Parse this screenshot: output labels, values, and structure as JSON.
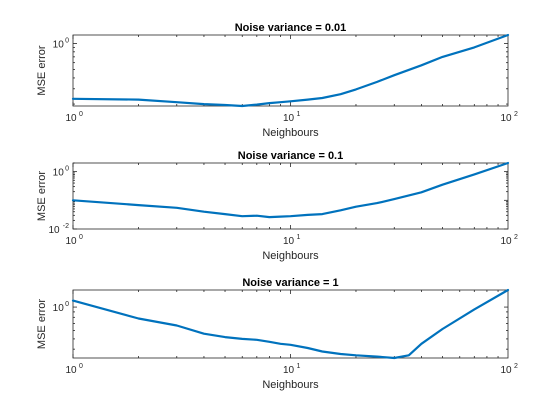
{
  "chart_data": [
    {
      "type": "line",
      "title": "Noise variance = 0.01",
      "xlabel": "Neighbours",
      "ylabel": "MSE error",
      "x_scale": "log",
      "y_scale": "log",
      "xlim": [
        1,
        100
      ],
      "ylim": [
        0.19,
        1.25
      ],
      "x_ticks": [
        {
          "base": "10",
          "exp": "0",
          "value": 1
        },
        {
          "base": "10",
          "exp": "1",
          "value": 10
        },
        {
          "base": "10",
          "exp": "2",
          "value": 100
        }
      ],
      "y_ticks": [
        {
          "base": "10",
          "exp": "0",
          "value": 1
        }
      ],
      "series": [
        {
          "color": "#0072BD",
          "x": [
            1,
            2,
            3,
            4,
            5,
            6,
            7,
            8,
            9,
            10,
            12,
            14,
            17,
            20,
            25,
            30,
            40,
            50,
            70,
            100
          ],
          "y": [
            0.23,
            0.225,
            0.21,
            0.2,
            0.195,
            0.19,
            0.197,
            0.205,
            0.21,
            0.215,
            0.225,
            0.235,
            0.26,
            0.295,
            0.36,
            0.43,
            0.56,
            0.7,
            0.9,
            1.25
          ]
        }
      ]
    },
    {
      "type": "line",
      "title": "Noise variance = 0.1",
      "xlabel": "Neighbours",
      "ylabel": "MSE error",
      "x_scale": "log",
      "y_scale": "log",
      "xlim": [
        1,
        100
      ],
      "ylim": [
        0.01,
        2
      ],
      "x_ticks": [
        {
          "base": "10",
          "exp": "0",
          "value": 1
        },
        {
          "base": "10",
          "exp": "1",
          "value": 10
        },
        {
          "base": "10",
          "exp": "2",
          "value": 100
        }
      ],
      "y_ticks": [
        {
          "base": "10",
          "exp": "-2",
          "value": 0.01
        },
        {
          "base": "10",
          "exp": "0",
          "value": 1
        }
      ],
      "series": [
        {
          "color": "#0072BD",
          "x": [
            1,
            2,
            3,
            4,
            5,
            6,
            7,
            8,
            9,
            10,
            12,
            14,
            17,
            20,
            25,
            30,
            40,
            50,
            70,
            100
          ],
          "y": [
            0.1,
            0.068,
            0.055,
            0.04,
            0.033,
            0.028,
            0.029,
            0.026,
            0.027,
            0.028,
            0.031,
            0.033,
            0.045,
            0.06,
            0.08,
            0.11,
            0.19,
            0.35,
            0.8,
            2.0
          ]
        }
      ]
    },
    {
      "type": "line",
      "title": "Noise variance = 1",
      "xlabel": "Neighbours",
      "ylabel": "MSE error",
      "x_scale": "log",
      "y_scale": "log",
      "xlim": [
        1,
        100
      ],
      "ylim": [
        0.33,
        1.45
      ],
      "x_ticks": [
        {
          "base": "10",
          "exp": "0",
          "value": 1
        },
        {
          "base": "10",
          "exp": "1",
          "value": 10
        },
        {
          "base": "10",
          "exp": "2",
          "value": 100
        }
      ],
      "y_ticks": [
        {
          "base": "10",
          "exp": "0",
          "value": 1
        }
      ],
      "series": [
        {
          "color": "#0072BD",
          "x": [
            1,
            2,
            3,
            4,
            5,
            6,
            7,
            8,
            9,
            10,
            12,
            14,
            17,
            20,
            25,
            30,
            35,
            40,
            50,
            70,
            100
          ],
          "y": [
            1.15,
            0.78,
            0.67,
            0.56,
            0.52,
            0.5,
            0.49,
            0.47,
            0.45,
            0.44,
            0.41,
            0.38,
            0.36,
            0.35,
            0.34,
            0.33,
            0.35,
            0.45,
            0.62,
            0.95,
            1.45
          ]
        }
      ]
    }
  ]
}
